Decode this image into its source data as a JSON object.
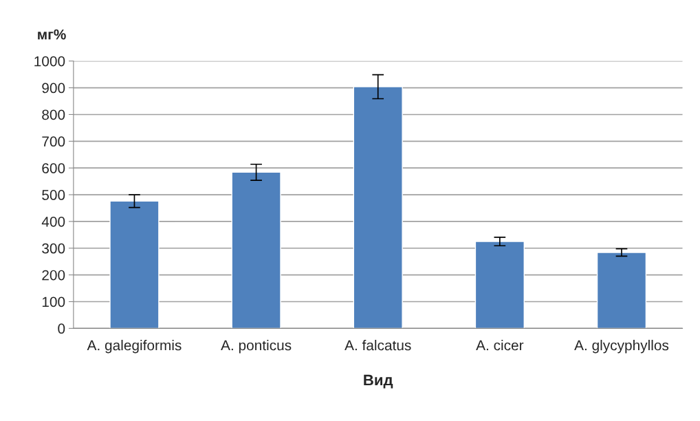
{
  "chart_data": {
    "type": "bar",
    "categories": [
      "A. galegiformis",
      "A. ponticus",
      "A. falcatus",
      "A. cicer",
      "A. glycyphyllos"
    ],
    "values": [
      476,
      584,
      904,
      325,
      284
    ],
    "errors": [
      24,
      30,
      45,
      16,
      14
    ],
    "color": "#4f81bd",
    "ylabel": "мг%",
    "xlabel": "Вид",
    "ylim": [
      0,
      1000
    ],
    "yticks": [
      0,
      100,
      200,
      300,
      400,
      500,
      600,
      700,
      800,
      900,
      1000
    ],
    "grid": "y",
    "legend": false
  }
}
